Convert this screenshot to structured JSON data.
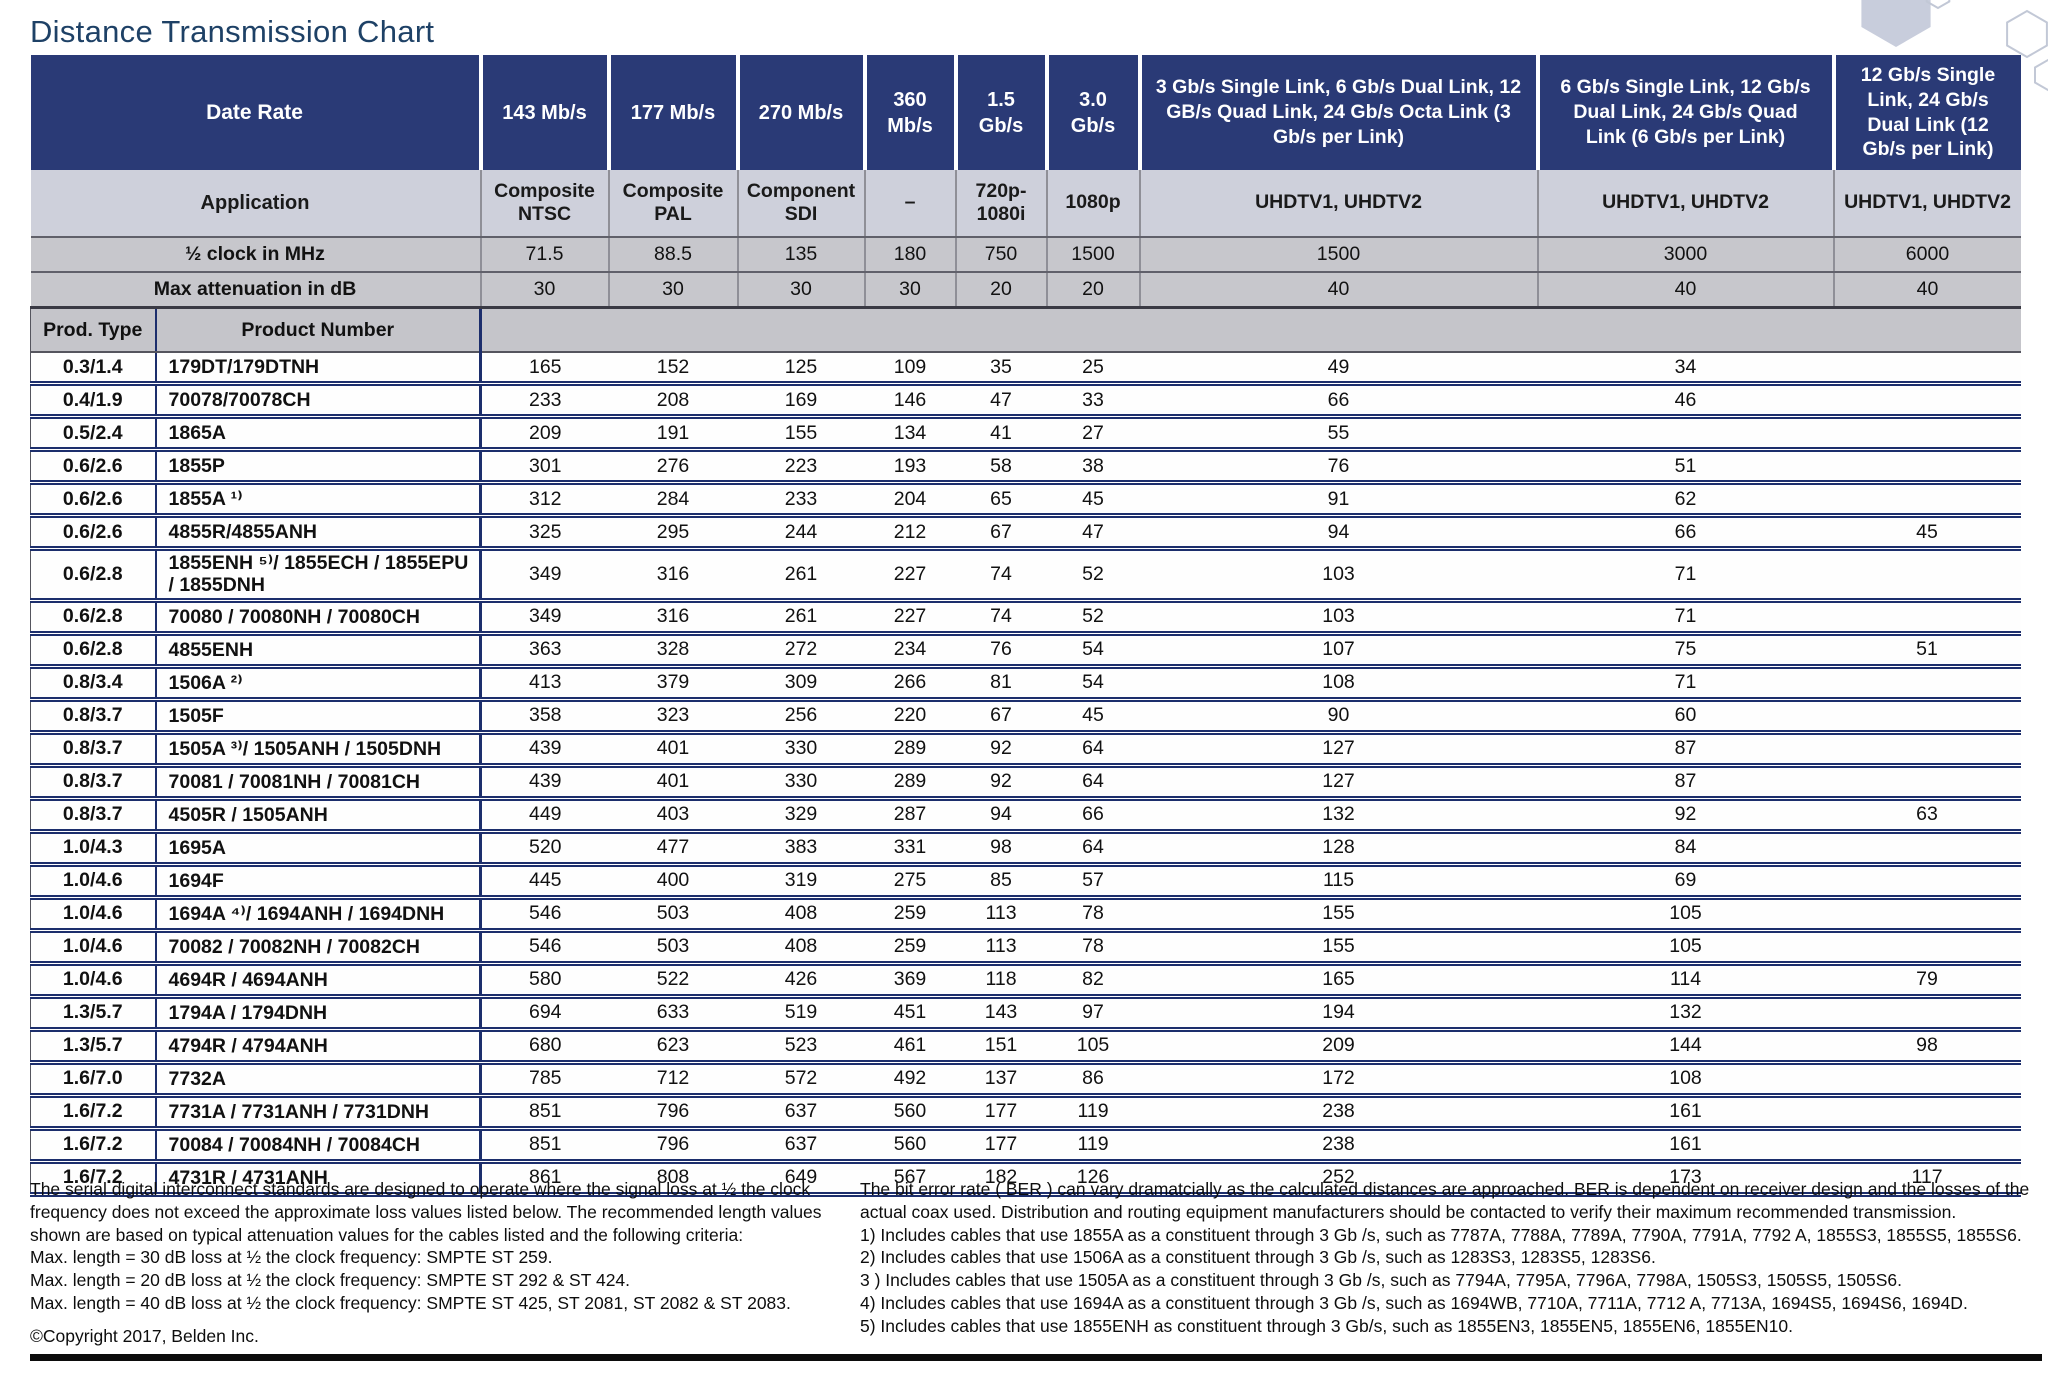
{
  "page": {
    "title": "Distance Transmission Chart",
    "copyright": "©Copyright 2017, Belden Inc."
  },
  "table": {
    "corner": {
      "date_rate": "Date Rate",
      "application": "Application",
      "half_clock": "½ clock in MHz",
      "max_attenuation": "Max attenuation in dB",
      "prod_type": "Prod. Type",
      "product_number": "Product Number"
    },
    "columns": [
      "143 Mb/s",
      "177 Mb/s",
      "270 Mb/s",
      "360 Mb/s",
      "1.5 Gb/s",
      "3.0 Gb/s",
      "3 Gb/s Single Link, 6 Gb/s Dual Link, 12 GB/s Quad Link, 24 Gb/s Octa Link (3 Gb/s per Link)",
      "6 Gb/s Single Link, 12 Gb/s Dual Link, 24 Gb/s Quad Link (6 Gb/s per Link)",
      "12 Gb/s Single Link, 24 Gb/s Dual Link (12 Gb/s per Link)"
    ],
    "applications": [
      "Composite NTSC",
      "Composite PAL",
      "Component SDI",
      "–",
      "720p-1080i",
      "1080p",
      "UHDTV1, UHDTV2",
      "UHDTV1, UHDTV2",
      "UHDTV1, UHDTV2"
    ],
    "half_clock_values": [
      "71.5",
      "88.5",
      "135",
      "180",
      "750",
      "1500",
      "1500",
      "3000",
      "6000"
    ],
    "max_attenuation_values": [
      "30",
      "30",
      "30",
      "30",
      "20",
      "20",
      "40",
      "40",
      "40"
    ],
    "rows": [
      {
        "type": "0.3/1.4",
        "product": "179DT/179DTNH",
        "values": [
          "165",
          "152",
          "125",
          "109",
          "35",
          "25",
          "49",
          "34",
          ""
        ]
      },
      {
        "type": "0.4/1.9",
        "product": "70078/70078CH",
        "values": [
          "233",
          "208",
          "169",
          "146",
          "47",
          "33",
          "66",
          "46",
          ""
        ]
      },
      {
        "type": "0.5/2.4",
        "product": "1865A",
        "values": [
          "209",
          "191",
          "155",
          "134",
          "41",
          "27",
          "55",
          "",
          ""
        ]
      },
      {
        "type": "0.6/2.6",
        "product": "1855P",
        "values": [
          "301",
          "276",
          "223",
          "193",
          "58",
          "38",
          "76",
          "51",
          ""
        ]
      },
      {
        "type": "0.6/2.6",
        "product": "1855A ¹⁾",
        "values": [
          "312",
          "284",
          "233",
          "204",
          "65",
          "45",
          "91",
          "62",
          ""
        ]
      },
      {
        "type": "0.6/2.6",
        "product": "4855R/4855ANH",
        "values": [
          "325",
          "295",
          "244",
          "212",
          "67",
          "47",
          "94",
          "66",
          "45"
        ]
      },
      {
        "type": "0.6/2.8",
        "product": "1855ENH ⁵⁾/ 1855ECH / 1855EPU / 1855DNH",
        "values": [
          "349",
          "316",
          "261",
          "227",
          "74",
          "52",
          "103",
          "71",
          ""
        ],
        "tall": true
      },
      {
        "type": "0.6/2.8",
        "product": "70080 / 70080NH / 70080CH",
        "values": [
          "349",
          "316",
          "261",
          "227",
          "74",
          "52",
          "103",
          "71",
          ""
        ]
      },
      {
        "type": "0.6/2.8",
        "product": "4855ENH",
        "values": [
          "363",
          "328",
          "272",
          "234",
          "76",
          "54",
          "107",
          "75",
          "51"
        ]
      },
      {
        "type": "0.8/3.4",
        "product": "1506A ²⁾",
        "values": [
          "413",
          "379",
          "309",
          "266",
          "81",
          "54",
          "108",
          "71",
          ""
        ]
      },
      {
        "type": "0.8/3.7",
        "product": "1505F",
        "values": [
          "358",
          "323",
          "256",
          "220",
          "67",
          "45",
          "90",
          "60",
          ""
        ]
      },
      {
        "type": "0.8/3.7",
        "product": "1505A ³⁾/ 1505ANH / 1505DNH",
        "values": [
          "439",
          "401",
          "330",
          "289",
          "92",
          "64",
          "127",
          "87",
          ""
        ]
      },
      {
        "type": "0.8/3.7",
        "product": "70081 / 70081NH / 70081CH",
        "values": [
          "439",
          "401",
          "330",
          "289",
          "92",
          "64",
          "127",
          "87",
          ""
        ]
      },
      {
        "type": "0.8/3.7",
        "product": "4505R / 1505ANH",
        "values": [
          "449",
          "403",
          "329",
          "287",
          "94",
          "66",
          "132",
          "92",
          "63"
        ]
      },
      {
        "type": "1.0/4.3",
        "product": "1695A",
        "values": [
          "520",
          "477",
          "383",
          "331",
          "98",
          "64",
          "128",
          "84",
          ""
        ]
      },
      {
        "type": "1.0/4.6",
        "product": "1694F",
        "values": [
          "445",
          "400",
          "319",
          "275",
          "85",
          "57",
          "115",
          "69",
          ""
        ]
      },
      {
        "type": "1.0/4.6",
        "product": "1694A ⁴⁾/ 1694ANH / 1694DNH",
        "values": [
          "546",
          "503",
          "408",
          "259",
          "113",
          "78",
          "155",
          "105",
          ""
        ]
      },
      {
        "type": "1.0/4.6",
        "product": "70082 / 70082NH / 70082CH",
        "values": [
          "546",
          "503",
          "408",
          "259",
          "113",
          "78",
          "155",
          "105",
          ""
        ]
      },
      {
        "type": "1.0/4.6",
        "product": "4694R / 4694ANH",
        "values": [
          "580",
          "522",
          "426",
          "369",
          "118",
          "82",
          "165",
          "114",
          "79"
        ]
      },
      {
        "type": "1.3/5.7",
        "product": "1794A / 1794DNH",
        "values": [
          "694",
          "633",
          "519",
          "451",
          "143",
          "97",
          "194",
          "132",
          ""
        ]
      },
      {
        "type": "1.3/5.7",
        "product": "4794R / 4794ANH",
        "values": [
          "680",
          "623",
          "523",
          "461",
          "151",
          "105",
          "209",
          "144",
          "98"
        ]
      },
      {
        "type": "1.6/7.0",
        "product": "7732A",
        "values": [
          "785",
          "712",
          "572",
          "492",
          "137",
          "86",
          "172",
          "108",
          ""
        ]
      },
      {
        "type": "1.6/7.2",
        "product": "7731A / 7731ANH / 7731DNH",
        "values": [
          "851",
          "796",
          "637",
          "560",
          "177",
          "119",
          "238",
          "161",
          ""
        ]
      },
      {
        "type": "1.6/7.2",
        "product": "70084 / 70084NH / 70084CH",
        "values": [
          "851",
          "796",
          "637",
          "560",
          "177",
          "119",
          "238",
          "161",
          ""
        ]
      },
      {
        "type": "1.6/7.2",
        "product": "4731R / 4731ANH",
        "values": [
          "861",
          "808",
          "649",
          "567",
          "182",
          "126",
          "252",
          "173",
          "117"
        ]
      }
    ]
  },
  "footnotes": {
    "left_paragraph": "The serial digital interconnect standards are designed to operate where the signal loss at ½ the clock frequency does not exceed the approximate loss values listed below. The recommended length values shown are based on typical attenuation values for the cables listed and the following criteria:",
    "left_lines": [
      "Max. length = 30 dB loss at ½ the clock frequency: SMPTE ST 259.",
      "Max. length = 20 dB loss at ½ the clock frequency: SMPTE ST 292 & ST 424.",
      "Max. length = 40 dB loss at ½ the clock frequency: SMPTE ST 425, ST 2081, ST 2082 & ST 2083."
    ],
    "right_paragraph": "The bit error rate ( BER ) can vary dramatcially as the calculated distances are approached. BER is dependent on receiver design and the losses of the actual coax used. Distribution and routing equipment manufacturers should be contacted to verify their maximum recommended transmission.",
    "right_notes": [
      "1) Includes cables that use 1855A as a constituent through 3 Gb /s, such as 7787A, 7788A, 7789A, 7790A, 7791A, 7792 A, 1855S3, 1855S5, 1855S6.",
      "2) Includes cables that use 1506A as a constituent through 3 Gb /s, such as 1283S3, 1283S5, 1283S6.",
      "3 ) Includes cables that use 1505A as a constituent through 3 Gb /s, such as 7794A, 7795A, 7796A, 7798A, 1505S3, 1505S5, 1505S6.",
      "4) Includes cables that use 1694A as a constituent through 3 Gb /s, such as 1694WB, 7710A, 7711A, 7712 A, 7713A, 1694S5, 1694S6, 1694D.",
      "5) Includes cables that use 1855ENH as constituent through 3 Gb/s, such as 1855EN3, 1855EN5, 1855EN6, 1855EN10."
    ]
  },
  "decor": {
    "header_navy": "#2a3a76",
    "separator_navy": "#1c2e6c",
    "hexagon_fill": "#c8cddc",
    "hexagon_outline": "#c2c8d6"
  }
}
